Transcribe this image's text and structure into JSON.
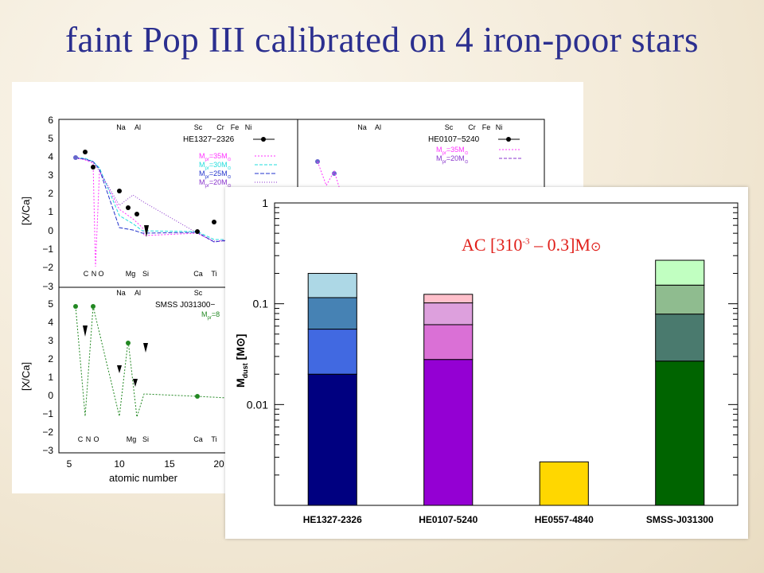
{
  "title": "faint Pop III calibrated on 4 iron-poor stars",
  "abundance_top": {
    "ylabel": "[X/Ca]",
    "y_ticks": [
      "6",
      "5",
      "4",
      "3",
      "2",
      "1",
      "0",
      "−1",
      "−2",
      "−3"
    ],
    "top_elements": [
      "Na",
      "Al",
      "Sc",
      "Cr",
      "Fe",
      "Ni"
    ],
    "bottom_elements": [
      "C",
      "N",
      "O",
      "Mg",
      "Si",
      "Ca",
      "Ti"
    ],
    "star1": "HE1327−2326",
    "legend1": [
      "M",
      "=35M",
      "M",
      "=30M",
      "M",
      "=25M",
      "M",
      "=20M"
    ],
    "legend1_sub": [
      "pr",
      "⊙",
      "pr",
      "⊙",
      "pr",
      "⊙",
      "pr",
      "⊙"
    ],
    "star2": "HE0107−5240",
    "legend2": [
      "M",
      "=35M",
      "M",
      "=20M"
    ],
    "legend2_sub": [
      "pr",
      "⊙",
      "pr",
      "⊙"
    ],
    "top_elements_2": [
      "Na",
      "Al",
      "Sc",
      "Cr",
      "Fe",
      "Ni"
    ]
  },
  "abundance_bottom": {
    "ylabel": "[X/Ca]",
    "y_ticks": [
      "5",
      "4",
      "3",
      "2",
      "1",
      "0",
      "−1",
      "−2",
      "−3"
    ],
    "top_elements": [
      "Na",
      "Al",
      "Sc"
    ],
    "bottom_elements": [
      "C",
      "N",
      "O",
      "Mg",
      "Si",
      "Ca",
      "Ti"
    ],
    "star": "SMSS J031300−",
    "legend": "M",
    "legend_sub": "pr",
    "legend_rest": "=8",
    "x_ticks": [
      "5",
      "10",
      "15",
      "20"
    ],
    "xlabel": "atomic number"
  },
  "dust_label": {
    "prefix": "AC  [3",
    "mid": "10",
    "exp": "-3",
    "suffix": " – 0.3]M",
    "sun": "⊙"
  },
  "chart_data": {
    "type": "bar",
    "stacked": true,
    "yscale": "log",
    "ylim": [
      0.001,
      1
    ],
    "ylabel": "M",
    "ylabel_sub": "dust",
    "ylabel_unit": "[M⊙]",
    "y_tick_labels": [
      "1",
      "0.1",
      "0.01"
    ],
    "categories": [
      "HE1327-2326",
      "HE0107-5240",
      "HE0557-4840",
      "SMSS-J031300"
    ],
    "stacks": [
      {
        "segments": [
          {
            "top": 0.02,
            "color": "#000080"
          },
          {
            "top": 0.056,
            "color": "#4169e1"
          },
          {
            "top": 0.115,
            "color": "#4682b4"
          },
          {
            "top": 0.2,
            "color": "#add8e6"
          }
        ]
      },
      {
        "segments": [
          {
            "top": 0.028,
            "color": "#9400d3"
          },
          {
            "top": 0.062,
            "color": "#da70d6"
          },
          {
            "top": 0.102,
            "color": "#dda0dd"
          },
          {
            "top": 0.124,
            "color": "#ffc0cb"
          }
        ]
      },
      {
        "segments": [
          {
            "top": 0.0027,
            "color": "#ffd700"
          }
        ]
      },
      {
        "segments": [
          {
            "top": 0.027,
            "color": "#006400"
          },
          {
            "top": 0.079,
            "color": "#4a7a6e"
          },
          {
            "top": 0.153,
            "color": "#8fbc8f"
          },
          {
            "top": 0.27,
            "color": "#c1ffc1"
          }
        ]
      }
    ]
  }
}
